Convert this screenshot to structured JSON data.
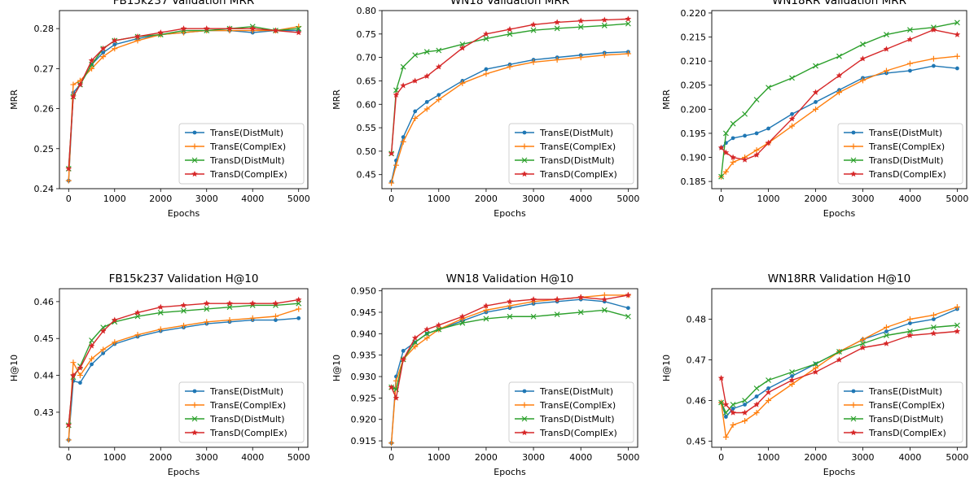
{
  "figure": {
    "legend_entries": [
      "TransE(DistMult)",
      "TransE(ComplEx)",
      "TransD(DistMult)",
      "TransD(ComplEx)"
    ],
    "series_colors": [
      "#1f77b4",
      "#ff7f0e",
      "#2ca02c",
      "#d62728"
    ],
    "series_markers": [
      "dot",
      "plus",
      "x",
      "star"
    ]
  },
  "chart_data": [
    {
      "type": "line",
      "title": "FB15k237 Validation MRR",
      "xlabel": "Epochs",
      "ylabel": "MRR",
      "xlim": [
        -200,
        5200
      ],
      "ylim": [
        0.24,
        0.2845
      ],
      "xticks": [
        0,
        1000,
        2000,
        3000,
        4000,
        5000
      ],
      "yticks": [
        0.24,
        0.25,
        0.26,
        0.27,
        0.28
      ],
      "ytick_labels": [
        "0.24",
        "0.25",
        "0.26",
        "0.27",
        "0.28"
      ],
      "legend_position": "lower-right",
      "x": [
        0,
        100,
        250,
        500,
        750,
        1000,
        1500,
        2000,
        2500,
        3000,
        3500,
        4000,
        4500,
        5000
      ],
      "series": [
        {
          "name": "TransE(DistMult)",
          "values": [
            0.242,
            0.264,
            0.266,
            0.271,
            0.274,
            0.276,
            0.2775,
            0.2785,
            0.279,
            0.2795,
            0.2795,
            0.279,
            0.2795,
            0.2795
          ]
        },
        {
          "name": "TransE(ComplEx)",
          "values": [
            0.242,
            0.266,
            0.267,
            0.27,
            0.273,
            0.275,
            0.277,
            0.2785,
            0.279,
            0.2795,
            0.2795,
            0.2795,
            0.2795,
            0.2805
          ]
        },
        {
          "name": "TransD(DistMult)",
          "values": [
            0.245,
            0.263,
            0.266,
            0.271,
            0.275,
            0.277,
            0.278,
            0.2785,
            0.2795,
            0.2795,
            0.28,
            0.2805,
            0.2795,
            0.28
          ]
        },
        {
          "name": "TransD(ComplEx)",
          "values": [
            0.245,
            0.263,
            0.266,
            0.272,
            0.275,
            0.277,
            0.278,
            0.279,
            0.28,
            0.28,
            0.28,
            0.28,
            0.2795,
            0.279
          ]
        }
      ]
    },
    {
      "type": "line",
      "title": "WN18 Validation MRR",
      "xlabel": "Epochs",
      "ylabel": "MRR",
      "xlim": [
        -200,
        5200
      ],
      "ylim": [
        0.42,
        0.8
      ],
      "xticks": [
        0,
        1000,
        2000,
        3000,
        4000,
        5000
      ],
      "yticks": [
        0.45,
        0.5,
        0.55,
        0.6,
        0.65,
        0.7,
        0.75,
        0.8
      ],
      "ytick_labels": [
        "0.45",
        "0.50",
        "0.55",
        "0.60",
        "0.65",
        "0.70",
        "0.75",
        "0.80"
      ],
      "legend_position": "lower-right",
      "x": [
        0,
        100,
        250,
        500,
        750,
        1000,
        1500,
        2000,
        2500,
        3000,
        3500,
        4000,
        4500,
        5000
      ],
      "series": [
        {
          "name": "TransE(DistMult)",
          "values": [
            0.435,
            0.48,
            0.53,
            0.585,
            0.605,
            0.62,
            0.65,
            0.675,
            0.685,
            0.695,
            0.7,
            0.705,
            0.71,
            0.712
          ]
        },
        {
          "name": "TransE(ComplEx)",
          "values": [
            0.432,
            0.47,
            0.52,
            0.57,
            0.59,
            0.61,
            0.645,
            0.665,
            0.68,
            0.69,
            0.695,
            0.7,
            0.705,
            0.708
          ]
        },
        {
          "name": "TransD(DistMult)",
          "values": [
            0.495,
            0.63,
            0.68,
            0.705,
            0.712,
            0.715,
            0.728,
            0.74,
            0.75,
            0.758,
            0.762,
            0.765,
            0.768,
            0.772
          ]
        },
        {
          "name": "TransD(ComplEx)",
          "values": [
            0.495,
            0.62,
            0.64,
            0.65,
            0.66,
            0.68,
            0.72,
            0.75,
            0.76,
            0.77,
            0.775,
            0.778,
            0.78,
            0.782
          ]
        }
      ]
    },
    {
      "type": "line",
      "title": "WN18RR Validation MRR",
      "xlabel": "Epochs",
      "ylabel": "MRR",
      "xlim": [
        -200,
        5200
      ],
      "ylim": [
        0.1835,
        0.2205
      ],
      "xticks": [
        0,
        1000,
        2000,
        3000,
        4000,
        5000
      ],
      "yticks": [
        0.185,
        0.19,
        0.195,
        0.2,
        0.205,
        0.21,
        0.215,
        0.22
      ],
      "ytick_labels": [
        "0.185",
        "0.190",
        "0.195",
        "0.200",
        "0.205",
        "0.210",
        "0.215",
        "0.220"
      ],
      "legend_position": "lower-right",
      "x": [
        0,
        100,
        250,
        500,
        750,
        1000,
        1500,
        2000,
        2500,
        3000,
        3500,
        4000,
        4500,
        5000
      ],
      "series": [
        {
          "name": "TransE(DistMult)",
          "values": [
            0.192,
            0.193,
            0.194,
            0.1945,
            0.195,
            0.196,
            0.199,
            0.2015,
            0.204,
            0.2065,
            0.2075,
            0.208,
            0.209,
            0.2085
          ]
        },
        {
          "name": "TransE(ComplEx)",
          "values": [
            0.186,
            0.187,
            0.189,
            0.19,
            0.1915,
            0.193,
            0.1965,
            0.2,
            0.2035,
            0.206,
            0.208,
            0.2095,
            0.2105,
            0.211
          ]
        },
        {
          "name": "TransD(DistMult)",
          "values": [
            0.186,
            0.195,
            0.197,
            0.199,
            0.202,
            0.2045,
            0.2065,
            0.209,
            0.211,
            0.2135,
            0.2155,
            0.2165,
            0.217,
            0.218
          ]
        },
        {
          "name": "TransD(ComplEx)",
          "values": [
            0.192,
            0.191,
            0.19,
            0.1895,
            0.1905,
            0.193,
            0.198,
            0.2035,
            0.207,
            0.2105,
            0.2125,
            0.2145,
            0.2165,
            0.2155
          ]
        }
      ]
    },
    {
      "type": "line",
      "title": "FB15k237 Validation H@10",
      "xlabel": "Epochs",
      "ylabel": "H@10",
      "xlim": [
        -200,
        5200
      ],
      "ylim": [
        0.4205,
        0.4635
      ],
      "xticks": [
        0,
        1000,
        2000,
        3000,
        4000,
        5000
      ],
      "yticks": [
        0.43,
        0.44,
        0.45,
        0.46
      ],
      "ytick_labels": [
        "0.43",
        "0.44",
        "0.45",
        "0.46"
      ],
      "legend_position": "lower-right",
      "x": [
        0,
        100,
        250,
        500,
        750,
        1000,
        1500,
        2000,
        2500,
        3000,
        3500,
        4000,
        4500,
        5000
      ],
      "series": [
        {
          "name": "TransE(DistMult)",
          "values": [
            0.4225,
            0.4385,
            0.438,
            0.443,
            0.446,
            0.4485,
            0.4505,
            0.452,
            0.453,
            0.454,
            0.4545,
            0.455,
            0.455,
            0.4555
          ]
        },
        {
          "name": "TransE(ComplEx)",
          "values": [
            0.4225,
            0.4435,
            0.44,
            0.4445,
            0.447,
            0.449,
            0.451,
            0.4525,
            0.4535,
            0.4545,
            0.455,
            0.4555,
            0.456,
            0.458
          ]
        },
        {
          "name": "TransD(DistMult)",
          "values": [
            0.4265,
            0.4395,
            0.4425,
            0.4495,
            0.453,
            0.4545,
            0.456,
            0.457,
            0.4575,
            0.458,
            0.4585,
            0.459,
            0.459,
            0.4595
          ]
        },
        {
          "name": "TransD(ComplEx)",
          "values": [
            0.4265,
            0.44,
            0.442,
            0.448,
            0.452,
            0.455,
            0.457,
            0.4585,
            0.459,
            0.4595,
            0.4595,
            0.4595,
            0.4595,
            0.4605
          ]
        }
      ]
    },
    {
      "type": "line",
      "title": "WN18 Validation H@10",
      "xlabel": "Epochs",
      "ylabel": "H@10",
      "xlim": [
        -200,
        5200
      ],
      "ylim": [
        0.9135,
        0.9505
      ],
      "xticks": [
        0,
        1000,
        2000,
        3000,
        4000,
        5000
      ],
      "yticks": [
        0.915,
        0.92,
        0.925,
        0.93,
        0.935,
        0.94,
        0.945,
        0.95
      ],
      "ytick_labels": [
        "0.915",
        "0.920",
        "0.925",
        "0.930",
        "0.935",
        "0.940",
        "0.945",
        "0.950"
      ],
      "legend_position": "lower-right",
      "x": [
        0,
        100,
        250,
        500,
        750,
        1000,
        1500,
        2000,
        2500,
        3000,
        3500,
        4000,
        4500,
        5000
      ],
      "series": [
        {
          "name": "TransE(DistMult)",
          "values": [
            0.9145,
            0.93,
            0.936,
            0.938,
            0.94,
            0.941,
            0.943,
            0.945,
            0.946,
            0.947,
            0.9475,
            0.948,
            0.9475,
            0.946
          ]
        },
        {
          "name": "TransE(ComplEx)",
          "values": [
            0.9145,
            0.929,
            0.934,
            0.937,
            0.939,
            0.941,
            0.9435,
            0.9455,
            0.9465,
            0.9475,
            0.948,
            0.9485,
            0.949,
            0.949
          ]
        },
        {
          "name": "TransD(DistMult)",
          "values": [
            0.9275,
            0.927,
            0.934,
            0.938,
            0.94,
            0.941,
            0.9425,
            0.9435,
            0.944,
            0.944,
            0.9445,
            0.945,
            0.9455,
            0.944
          ]
        },
        {
          "name": "TransD(ComplEx)",
          "values": [
            0.9275,
            0.925,
            0.934,
            0.939,
            0.941,
            0.942,
            0.944,
            0.9465,
            0.9475,
            0.948,
            0.948,
            0.9485,
            0.948,
            0.949
          ]
        }
      ]
    },
    {
      "type": "line",
      "title": "WN18RR Validation H@10",
      "xlabel": "Epochs",
      "ylabel": "H@10",
      "xlim": [
        -200,
        5200
      ],
      "ylim": [
        0.4485,
        0.4875
      ],
      "xticks": [
        0,
        1000,
        2000,
        3000,
        4000,
        5000
      ],
      "yticks": [
        0.45,
        0.46,
        0.47,
        0.48
      ],
      "ytick_labels": [
        "0.45",
        "0.46",
        "0.47",
        "0.48"
      ],
      "legend_position": "lower-right",
      "x": [
        0,
        100,
        250,
        500,
        750,
        1000,
        1500,
        2000,
        2500,
        3000,
        3500,
        4000,
        4500,
        5000
      ],
      "series": [
        {
          "name": "TransE(DistMult)",
          "values": [
            0.4595,
            0.456,
            0.458,
            0.459,
            0.461,
            0.463,
            0.466,
            0.469,
            0.472,
            0.475,
            0.477,
            0.479,
            0.48,
            0.4825
          ]
        },
        {
          "name": "TransE(ComplEx)",
          "values": [
            0.4595,
            0.451,
            0.454,
            0.455,
            0.457,
            0.46,
            0.464,
            0.468,
            0.472,
            0.475,
            0.478,
            0.48,
            0.481,
            0.483
          ]
        },
        {
          "name": "TransD(DistMult)",
          "values": [
            0.4595,
            0.457,
            0.459,
            0.46,
            0.463,
            0.465,
            0.467,
            0.469,
            0.472,
            0.474,
            0.476,
            0.477,
            0.478,
            0.4785
          ]
        },
        {
          "name": "TransD(ComplEx)",
          "values": [
            0.4655,
            0.459,
            0.457,
            0.457,
            0.459,
            0.462,
            0.465,
            0.467,
            0.47,
            0.473,
            0.474,
            0.476,
            0.4765,
            0.477
          ]
        }
      ]
    }
  ]
}
